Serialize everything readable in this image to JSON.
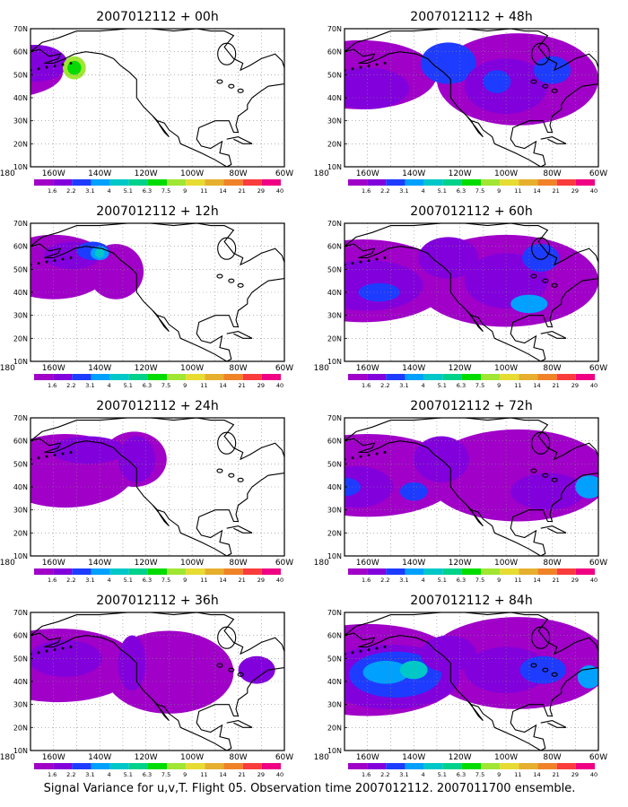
{
  "panels": [
    {
      "title": "2007012112 + 00h",
      "blobs": [
        {
          "cx": 182,
          "cy": 51,
          "rx": 26,
          "ry": 11,
          "level": 0
        },
        {
          "cx": 168,
          "cy": 55,
          "rx": 14,
          "ry": 8,
          "level": 1
        },
        {
          "cx": 151,
          "cy": 53,
          "rx": 5,
          "ry": 5,
          "level": 7
        },
        {
          "cx": 151,
          "cy": 53,
          "rx": 3,
          "ry": 3,
          "level": 6
        }
      ]
    },
    {
      "title": "2007012112 + 48h",
      "blobs": [
        {
          "cx": 163,
          "cy": 50,
          "rx": 33,
          "ry": 15,
          "level": 0
        },
        {
          "cx": 95,
          "cy": 48,
          "rx": 35,
          "ry": 20,
          "level": 0
        },
        {
          "cx": 160,
          "cy": 44,
          "rx": 18,
          "ry": 9,
          "level": 1
        },
        {
          "cx": 125,
          "cy": 55,
          "rx": 12,
          "ry": 9,
          "level": 2
        },
        {
          "cx": 100,
          "cy": 45,
          "rx": 18,
          "ry": 12,
          "level": 1
        },
        {
          "cx": 104,
          "cy": 47,
          "rx": 6,
          "ry": 5,
          "level": 2
        },
        {
          "cx": 80,
          "cy": 52,
          "rx": 8,
          "ry": 6,
          "level": 2
        }
      ]
    },
    {
      "title": "2007012112 + 12h",
      "blobs": [
        {
          "cx": 160,
          "cy": 51,
          "rx": 25,
          "ry": 14,
          "level": 0
        },
        {
          "cx": 133,
          "cy": 49,
          "rx": 12,
          "ry": 12,
          "level": 0
        },
        {
          "cx": 152,
          "cy": 56,
          "rx": 12,
          "ry": 6,
          "level": 1
        },
        {
          "cx": 143,
          "cy": 58,
          "rx": 7,
          "ry": 4,
          "level": 2
        },
        {
          "cx": 140,
          "cy": 57,
          "rx": 4,
          "ry": 3,
          "level": 3
        },
        {
          "cx": 140,
          "cy": 57,
          "rx": 2,
          "ry": 2,
          "level": 4
        }
      ]
    },
    {
      "title": "2007012112 + 60h",
      "blobs": [
        {
          "cx": 162,
          "cy": 45,
          "rx": 38,
          "ry": 18,
          "level": 0
        },
        {
          "cx": 100,
          "cy": 45,
          "rx": 40,
          "ry": 20,
          "level": 0
        },
        {
          "cx": 160,
          "cy": 43,
          "rx": 24,
          "ry": 11,
          "level": 1
        },
        {
          "cx": 155,
          "cy": 40,
          "rx": 9,
          "ry": 4,
          "level": 2
        },
        {
          "cx": 125,
          "cy": 55,
          "rx": 13,
          "ry": 9,
          "level": 1
        },
        {
          "cx": 100,
          "cy": 45,
          "rx": 18,
          "ry": 12,
          "level": 1
        },
        {
          "cx": 90,
          "cy": 35,
          "rx": 8,
          "ry": 4,
          "level": 3
        },
        {
          "cx": 85,
          "cy": 55,
          "rx": 8,
          "ry": 6,
          "level": 2
        }
      ]
    },
    {
      "title": "2007012112 + 24h",
      "blobs": [
        {
          "cx": 155,
          "cy": 47,
          "rx": 30,
          "ry": 16,
          "level": 0
        },
        {
          "cx": 125,
          "cy": 52,
          "rx": 14,
          "ry": 12,
          "level": 0
        },
        {
          "cx": 145,
          "cy": 56,
          "rx": 16,
          "ry": 6,
          "level": 1
        },
        {
          "cx": 124,
          "cy": 52,
          "rx": 8,
          "ry": 10,
          "level": 1
        }
      ]
    },
    {
      "title": "2007012112 + 72h",
      "blobs": [
        {
          "cx": 160,
          "cy": 45,
          "rx": 40,
          "ry": 18,
          "level": 0
        },
        {
          "cx": 95,
          "cy": 45,
          "rx": 40,
          "ry": 20,
          "level": 0
        },
        {
          "cx": 165,
          "cy": 40,
          "rx": 16,
          "ry": 9,
          "level": 1
        },
        {
          "cx": 170,
          "cy": 40,
          "rx": 7,
          "ry": 4,
          "level": 2
        },
        {
          "cx": 128,
          "cy": 52,
          "rx": 12,
          "ry": 10,
          "level": 1
        },
        {
          "cx": 140,
          "cy": 38,
          "rx": 6,
          "ry": 4,
          "level": 2
        },
        {
          "cx": 82,
          "cy": 38,
          "rx": 16,
          "ry": 8,
          "level": 1
        },
        {
          "cx": 64,
          "cy": 40,
          "rx": 6,
          "ry": 5,
          "level": 3
        }
      ]
    },
    {
      "title": "2007012112 + 36h",
      "blobs": [
        {
          "cx": 158,
          "cy": 47,
          "rx": 35,
          "ry": 16,
          "level": 0
        },
        {
          "cx": 110,
          "cy": 44,
          "rx": 28,
          "ry": 18,
          "level": 0
        },
        {
          "cx": 155,
          "cy": 50,
          "rx": 16,
          "ry": 8,
          "level": 1
        },
        {
          "cx": 126,
          "cy": 48,
          "rx": 6,
          "ry": 12,
          "level": 1
        },
        {
          "cx": 72,
          "cy": 45,
          "rx": 8,
          "ry": 6,
          "level": 1
        }
      ]
    },
    {
      "title": "2007012112 + 84h",
      "blobs": [
        {
          "cx": 160,
          "cy": 45,
          "rx": 42,
          "ry": 20,
          "level": 0
        },
        {
          "cx": 95,
          "cy": 48,
          "rx": 40,
          "ry": 20,
          "level": 0
        },
        {
          "cx": 150,
          "cy": 42,
          "rx": 30,
          "ry": 14,
          "level": 1
        },
        {
          "cx": 148,
          "cy": 43,
          "rx": 20,
          "ry": 10,
          "level": 2
        },
        {
          "cx": 152,
          "cy": 44,
          "rx": 10,
          "ry": 5,
          "level": 3
        },
        {
          "cx": 140,
          "cy": 45,
          "rx": 6,
          "ry": 4,
          "level": 4
        },
        {
          "cx": 125,
          "cy": 52,
          "rx": 12,
          "ry": 8,
          "level": 1
        },
        {
          "cx": 100,
          "cy": 45,
          "rx": 18,
          "ry": 10,
          "level": 1
        },
        {
          "cx": 84,
          "cy": 45,
          "rx": 10,
          "ry": 6,
          "level": 2
        },
        {
          "cx": 64,
          "cy": 42,
          "rx": 5,
          "ry": 5,
          "level": 3
        }
      ]
    }
  ],
  "map": {
    "lon_range": [
      170,
      60
    ],
    "lat_range": [
      10,
      70
    ],
    "lat_ticks": [
      "10N",
      "20N",
      "30N",
      "40N",
      "50N",
      "60N",
      "70N"
    ],
    "lon_ticks": [
      "180",
      "160W",
      "140W",
      "120W",
      "100W",
      "80W",
      "60W"
    ]
  },
  "colorbar": {
    "labels": [
      "1.6",
      "2.2",
      "3.1",
      "4",
      "5.1",
      "6.3",
      "7.5",
      "9",
      "11",
      "14",
      "21",
      "29",
      "40"
    ],
    "colors": [
      "#a000c8",
      "#8200dc",
      "#1e3cff",
      "#00a0ff",
      "#00c8c8",
      "#00d28c",
      "#00dc00",
      "#a0e632",
      "#e6dc32",
      "#e6af2d",
      "#f08228",
      "#fa3c3c",
      "#f00082"
    ]
  },
  "caption": "Signal Variance for u,v,T. Flight 05. Observation time 2007012112. 2007011700 ensemble."
}
